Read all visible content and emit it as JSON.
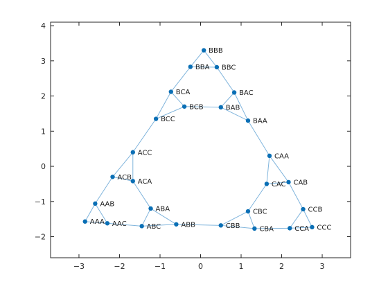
{
  "colors": {
    "edge": "#7fb4dc",
    "node": "#0a6fb5",
    "axis": "#262626",
    "background": "#ffffff"
  },
  "chart_data": {
    "type": "graph",
    "title": "",
    "xlabel": "",
    "ylabel": "",
    "xlim": [
      -3.7,
      3.7
    ],
    "ylim": [
      -2.6,
      4.1
    ],
    "xticks": [
      -3,
      -2,
      -1,
      0,
      1,
      2,
      3
    ],
    "yticks": [
      -2,
      -1,
      0,
      1,
      2,
      3,
      4
    ],
    "grid": false,
    "nodes": [
      {
        "label": "BBB",
        "x": 0.08,
        "y": 3.3
      },
      {
        "label": "BBA",
        "x": -0.25,
        "y": 2.83
      },
      {
        "label": "BBC",
        "x": 0.4,
        "y": 2.82
      },
      {
        "label": "BCA",
        "x": -0.73,
        "y": 2.12
      },
      {
        "label": "BAC",
        "x": 0.83,
        "y": 2.1
      },
      {
        "label": "BCB",
        "x": -0.4,
        "y": 1.7
      },
      {
        "label": "BAB",
        "x": 0.5,
        "y": 1.68
      },
      {
        "label": "BCC",
        "x": -1.1,
        "y": 1.35
      },
      {
        "label": "BAA",
        "x": 1.17,
        "y": 1.3
      },
      {
        "label": "ACC",
        "x": -1.67,
        "y": 0.4
      },
      {
        "label": "CAA",
        "x": 1.7,
        "y": 0.3
      },
      {
        "label": "ACB",
        "x": -2.17,
        "y": -0.3
      },
      {
        "label": "ACA",
        "x": -1.67,
        "y": -0.42
      },
      {
        "label": "CAC",
        "x": 1.63,
        "y": -0.5
      },
      {
        "label": "CAB",
        "x": 2.17,
        "y": -0.45
      },
      {
        "label": "AAB",
        "x": -2.6,
        "y": -1.06
      },
      {
        "label": "ABA",
        "x": -1.23,
        "y": -1.2
      },
      {
        "label": "CBC",
        "x": 1.17,
        "y": -1.28
      },
      {
        "label": "CCB",
        "x": 2.53,
        "y": -1.22
      },
      {
        "label": "AAA",
        "x": -2.85,
        "y": -1.57
      },
      {
        "label": "AAC",
        "x": -2.3,
        "y": -1.62
      },
      {
        "label": "ABC",
        "x": -1.45,
        "y": -1.7
      },
      {
        "label": "ABB",
        "x": -0.6,
        "y": -1.65
      },
      {
        "label": "CBB",
        "x": 0.5,
        "y": -1.68
      },
      {
        "label": "CBA",
        "x": 1.33,
        "y": -1.77
      },
      {
        "label": "CCA",
        "x": 2.2,
        "y": -1.76
      },
      {
        "label": "CCC",
        "x": 2.75,
        "y": -1.73
      }
    ],
    "edges": [
      [
        "BBB",
        "BBA"
      ],
      [
        "BBB",
        "BBC"
      ],
      [
        "BBA",
        "BBC"
      ],
      [
        "BBA",
        "BCA"
      ],
      [
        "BBC",
        "BAC"
      ],
      [
        "BCA",
        "BCB"
      ],
      [
        "BCA",
        "BCC"
      ],
      [
        "BCB",
        "BCC"
      ],
      [
        "BAC",
        "BAB"
      ],
      [
        "BAC",
        "BAA"
      ],
      [
        "BAB",
        "BAA"
      ],
      [
        "BCB",
        "BAB"
      ],
      [
        "BCC",
        "ACC"
      ],
      [
        "BAA",
        "CAA"
      ],
      [
        "ACC",
        "ACB"
      ],
      [
        "ACC",
        "ACA"
      ],
      [
        "ACB",
        "ACA"
      ],
      [
        "CAA",
        "CAC"
      ],
      [
        "CAA",
        "CAB"
      ],
      [
        "CAC",
        "CAB"
      ],
      [
        "ACB",
        "AAB"
      ],
      [
        "ACA",
        "ABA"
      ],
      [
        "CAC",
        "CBC"
      ],
      [
        "CAB",
        "CCB"
      ],
      [
        "AAB",
        "AAA"
      ],
      [
        "AAB",
        "AAC"
      ],
      [
        "AAA",
        "AAC"
      ],
      [
        "ABA",
        "ABC"
      ],
      [
        "ABA",
        "ABB"
      ],
      [
        "ABC",
        "ABB"
      ],
      [
        "AAC",
        "ABC"
      ],
      [
        "ABB",
        "CBB"
      ],
      [
        "CBC",
        "CBB"
      ],
      [
        "CBC",
        "CBA"
      ],
      [
        "CBB",
        "CBA"
      ],
      [
        "CCB",
        "CCA"
      ],
      [
        "CCB",
        "CCC"
      ],
      [
        "CCA",
        "CCC"
      ],
      [
        "CBA",
        "CCA"
      ]
    ]
  }
}
